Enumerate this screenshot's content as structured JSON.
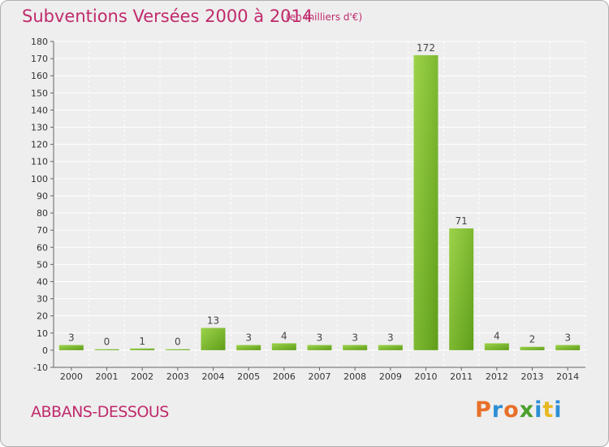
{
  "title": "Subventions Versées 2000 à 2014",
  "subtitle": "(en milliers d'€)",
  "place": "ABBANS-DESSOUS",
  "brand": "Proxiti",
  "colors": {
    "title": "#c02a6c",
    "bar_light": "#9dd34a",
    "bar_dark": "#5f9e1a",
    "background": "#eeeeee",
    "grid": "#ffffff"
  },
  "chart_data": {
    "type": "bar",
    "categories": [
      "2000",
      "2001",
      "2002",
      "2003",
      "2004",
      "2005",
      "2006",
      "2007",
      "2008",
      "2009",
      "2010",
      "2011",
      "2012",
      "2013",
      "2014"
    ],
    "values": [
      3,
      0,
      1,
      0,
      13,
      3,
      4,
      3,
      3,
      3,
      172,
      71,
      4,
      2,
      3
    ],
    "data_labels": [
      "3",
      "0",
      "1",
      "0",
      "13",
      "3",
      "4",
      "3",
      "3",
      "3",
      "172",
      "71",
      "4",
      "2",
      "3"
    ],
    "ylim": [
      -10,
      180
    ],
    "yticks": [
      -10,
      0,
      10,
      20,
      30,
      40,
      50,
      60,
      70,
      80,
      90,
      100,
      110,
      120,
      130,
      140,
      150,
      160,
      170,
      180
    ],
    "grid": true,
    "xlabel": "",
    "ylabel": ""
  }
}
